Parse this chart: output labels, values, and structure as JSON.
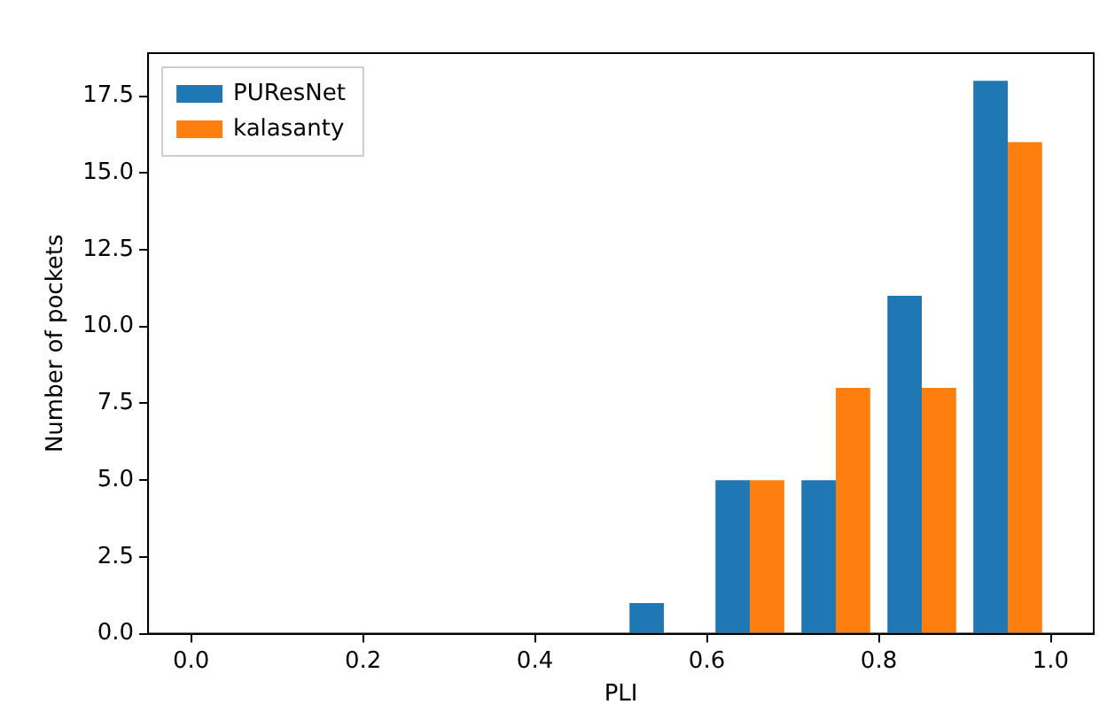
{
  "chart_data": {
    "type": "histogram",
    "xlabel": "PLI",
    "ylabel": "Number of pockets",
    "bins": [
      0.0,
      0.1,
      0.2,
      0.3,
      0.4,
      0.5,
      0.6,
      0.7,
      0.8,
      0.9,
      1.0
    ],
    "series": [
      {
        "name": "PUResNet",
        "color": "#1f77b4",
        "values": [
          0,
          0,
          0,
          0,
          0,
          1,
          5,
          5,
          11,
          18
        ]
      },
      {
        "name": "kalasanty",
        "color": "#ff7f0e",
        "values": [
          0,
          0,
          0,
          0,
          0,
          0,
          5,
          8,
          8,
          16
        ]
      }
    ],
    "xlim": [
      -0.05,
      1.05
    ],
    "xticks": [
      {
        "value": 0,
        "label": "0.0"
      },
      {
        "value": 0.2,
        "label": "0.2"
      },
      {
        "value": 0.4,
        "label": "0.4"
      },
      {
        "value": 0.6,
        "label": "0.6"
      },
      {
        "value": 0.8,
        "label": "0.8"
      },
      {
        "value": 1,
        "label": "1.0"
      }
    ],
    "ylim": [
      0,
      18.9
    ],
    "yticks": [
      {
        "value": 0,
        "label": "0.0"
      },
      {
        "value": 2.5,
        "label": "2.5"
      },
      {
        "value": 5,
        "label": "5.0"
      },
      {
        "value": 7.5,
        "label": "7.5"
      },
      {
        "value": 10,
        "label": "10.0"
      },
      {
        "value": 12.5,
        "label": "12.5"
      },
      {
        "value": 15,
        "label": "15.0"
      },
      {
        "value": 17.5,
        "label": "17.5"
      }
    ],
    "grid": false,
    "legend": "top left"
  }
}
